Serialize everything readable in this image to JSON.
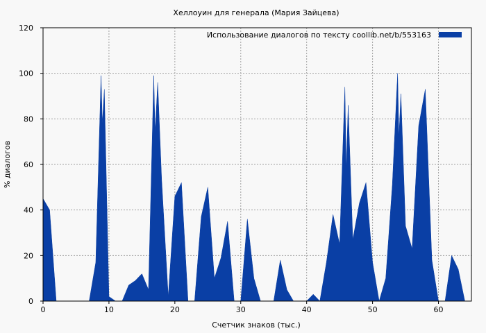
{
  "chart_data": {
    "type": "area",
    "title": "Хеллоуин для генерала (Мария Зайцева)",
    "xlabel": "Счетчик знаков (тыс.)",
    "ylabel": "% диалогов",
    "xlim": [
      0,
      65
    ],
    "ylim": [
      0,
      120
    ],
    "xticks": [
      0,
      10,
      20,
      30,
      40,
      50,
      60
    ],
    "yticks": [
      0,
      20,
      40,
      60,
      80,
      100,
      120
    ],
    "grid": true,
    "legend_position": "top-right",
    "series": [
      {
        "name": "Использование диалогов по тексту  coollib.net/b/553163",
        "color": "#0a3fa5",
        "x": [
          0,
          1,
          2,
          3,
          4,
          5,
          6,
          7,
          8,
          8.8,
          9,
          9.3,
          10,
          11,
          12,
          13,
          14,
          15,
          16,
          16.8,
          17,
          17.4,
          18,
          19,
          20,
          21,
          22,
          23,
          24,
          25,
          26,
          27,
          28,
          29,
          30,
          31,
          32,
          33,
          34,
          35,
          36,
          37,
          38,
          39,
          40,
          41,
          42,
          43,
          44,
          45,
          45.8,
          46,
          46.3,
          47,
          48,
          49,
          50,
          51,
          52,
          53,
          53.8,
          54,
          54.3,
          55,
          56,
          57,
          58,
          59,
          60,
          61,
          62,
          63,
          64
        ],
        "values": [
          45,
          40,
          0,
          0,
          0,
          0,
          0,
          0,
          17,
          99,
          78,
          93,
          2,
          0,
          0,
          7,
          9,
          12,
          5,
          99,
          74,
          96,
          53,
          2,
          46,
          52,
          0,
          0,
          37,
          50,
          10,
          19,
          35,
          0,
          0,
          36,
          10,
          0,
          0,
          0,
          18,
          5,
          0,
          0,
          0,
          3,
          0,
          17,
          38,
          25,
          94,
          58,
          86,
          27,
          43,
          52,
          17,
          0,
          10,
          51,
          100,
          72,
          91,
          33,
          23,
          77,
          93,
          18,
          0,
          0,
          20,
          14,
          0
        ]
      }
    ]
  }
}
